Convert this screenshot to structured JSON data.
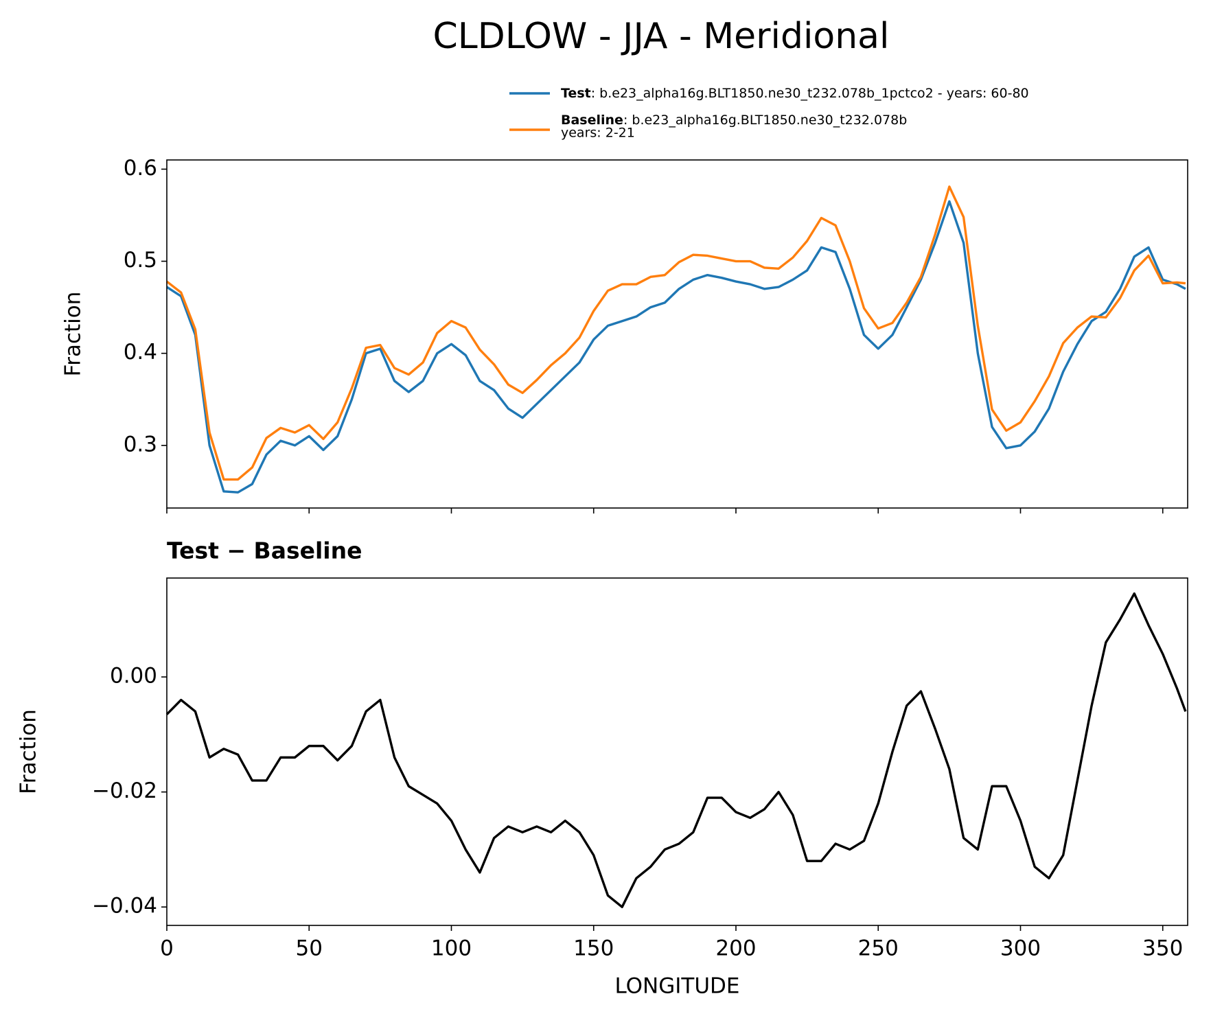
{
  "chart_data": [
    {
      "type": "line",
      "title": "CLDLOW - JJA - Meridional",
      "ylabel": "Fraction",
      "x": [
        0,
        5,
        10,
        15,
        20,
        25,
        30,
        35,
        40,
        45,
        50,
        55,
        60,
        65,
        70,
        75,
        80,
        85,
        90,
        95,
        100,
        105,
        110,
        115,
        120,
        125,
        130,
        135,
        140,
        145,
        150,
        155,
        160,
        165,
        170,
        175,
        180,
        185,
        190,
        195,
        200,
        205,
        210,
        215,
        220,
        225,
        230,
        235,
        240,
        245,
        250,
        255,
        260,
        265,
        270,
        275,
        280,
        285,
        290,
        295,
        300,
        305,
        310,
        315,
        320,
        325,
        330,
        335,
        340,
        345,
        350,
        355,
        358
      ],
      "series": [
        {
          "name": "Test",
          "label_lines": [
            ": b.e23_alpha16g.BLT1850.ne30_t232.078b_1pctco2 - years: 60-80"
          ],
          "color": "#1f77b4",
          "values": [
            0.472,
            0.462,
            0.42,
            0.3,
            0.25,
            0.249,
            0.258,
            0.29,
            0.305,
            0.3,
            0.31,
            0.295,
            0.31,
            0.35,
            0.4,
            0.405,
            0.37,
            0.358,
            0.37,
            0.4,
            0.41,
            0.398,
            0.37,
            0.36,
            0.34,
            0.33,
            0.345,
            0.36,
            0.375,
            0.39,
            0.415,
            0.43,
            0.435,
            0.44,
            0.45,
            0.455,
            0.47,
            0.48,
            0.485,
            0.482,
            0.478,
            0.475,
            0.47,
            0.472,
            0.48,
            0.49,
            0.515,
            0.51,
            0.47,
            0.42,
            0.405,
            0.42,
            0.45,
            0.48,
            0.52,
            0.565,
            0.52,
            0.4,
            0.32,
            0.297,
            0.3,
            0.315,
            0.34,
            0.38,
            0.41,
            0.435,
            0.445,
            0.47,
            0.505,
            0.515,
            0.48,
            0.475,
            0.47
          ]
        },
        {
          "name": "Baseline",
          "label_lines": [
            ": b.e23_alpha16g.BLT1850.ne30_t232.078b",
            "years: 2-21"
          ],
          "color": "#ff7f0e",
          "values": [
            0.478,
            0.466,
            0.426,
            0.314,
            0.263,
            0.263,
            0.276,
            0.308,
            0.319,
            0.314,
            0.322,
            0.307,
            0.325,
            0.362,
            0.406,
            0.409,
            0.384,
            0.377,
            0.39,
            0.422,
            0.435,
            0.428,
            0.404,
            0.388,
            0.366,
            0.357,
            0.371,
            0.387,
            0.4,
            0.417,
            0.446,
            0.468,
            0.475,
            0.475,
            0.483,
            0.485,
            0.499,
            0.507,
            0.506,
            0.503,
            0.5,
            0.5,
            0.493,
            0.492,
            0.504,
            0.522,
            0.547,
            0.539,
            0.5,
            0.449,
            0.427,
            0.433,
            0.455,
            0.483,
            0.529,
            0.581,
            0.548,
            0.43,
            0.339,
            0.316,
            0.325,
            0.348,
            0.375,
            0.411,
            0.428,
            0.44,
            0.439,
            0.46,
            0.49,
            0.506,
            0.476,
            0.477,
            0.476
          ]
        }
      ],
      "xlim": [
        0,
        358.75
      ],
      "xticks": [
        0,
        50,
        100,
        150,
        200,
        250,
        300,
        350
      ],
      "ylim": [
        0.232,
        0.61
      ],
      "yticks": [
        0.3,
        0.4,
        0.5,
        0.6
      ]
    },
    {
      "type": "line",
      "title": "Test − Baseline",
      "ylabel": "Fraction",
      "xlabel": "LONGITUDE",
      "x": [
        0,
        5,
        10,
        15,
        20,
        25,
        30,
        35,
        40,
        45,
        50,
        55,
        60,
        65,
        70,
        75,
        80,
        85,
        90,
        95,
        100,
        105,
        110,
        115,
        120,
        125,
        130,
        135,
        140,
        145,
        150,
        155,
        160,
        165,
        170,
        175,
        180,
        185,
        190,
        195,
        200,
        205,
        210,
        215,
        220,
        225,
        230,
        235,
        240,
        245,
        250,
        255,
        260,
        265,
        270,
        275,
        280,
        285,
        290,
        295,
        300,
        305,
        310,
        315,
        320,
        325,
        330,
        335,
        340,
        345,
        350,
        355,
        358
      ],
      "series": [
        {
          "color": "#000000",
          "values": [
            -0.0065,
            -0.004,
            -0.006,
            -0.014,
            -0.0125,
            -0.0135,
            -0.018,
            -0.018,
            -0.014,
            -0.014,
            -0.012,
            -0.012,
            -0.0145,
            -0.012,
            -0.006,
            -0.004,
            -0.014,
            -0.019,
            -0.0205,
            -0.022,
            -0.025,
            -0.03,
            -0.034,
            -0.028,
            -0.026,
            -0.027,
            -0.026,
            -0.027,
            -0.025,
            -0.027,
            -0.031,
            -0.038,
            -0.04,
            -0.035,
            -0.033,
            -0.03,
            -0.029,
            -0.027,
            -0.021,
            -0.021,
            -0.0235,
            -0.0245,
            -0.023,
            -0.02,
            -0.024,
            -0.032,
            -0.032,
            -0.029,
            -0.03,
            -0.0285,
            -0.022,
            -0.013,
            -0.005,
            -0.0025,
            -0.009,
            -0.016,
            -0.028,
            -0.03,
            -0.019,
            -0.019,
            -0.025,
            -0.033,
            -0.035,
            -0.031,
            -0.018,
            -0.005,
            0.006,
            0.01,
            0.0145,
            0.009,
            0.004,
            -0.002,
            -0.006
          ]
        }
      ],
      "xlim": [
        0,
        358.75
      ],
      "xticks": [
        0,
        50,
        100,
        150,
        200,
        250,
        300,
        350
      ],
      "ylim": [
        -0.0432,
        0.0172
      ],
      "yticks": [
        {
          "value": 0,
          "label": "0.00"
        },
        {
          "value": -0.02,
          "label": "−0.02"
        },
        {
          "value": -0.04,
          "label": "−0.04"
        }
      ]
    }
  ]
}
